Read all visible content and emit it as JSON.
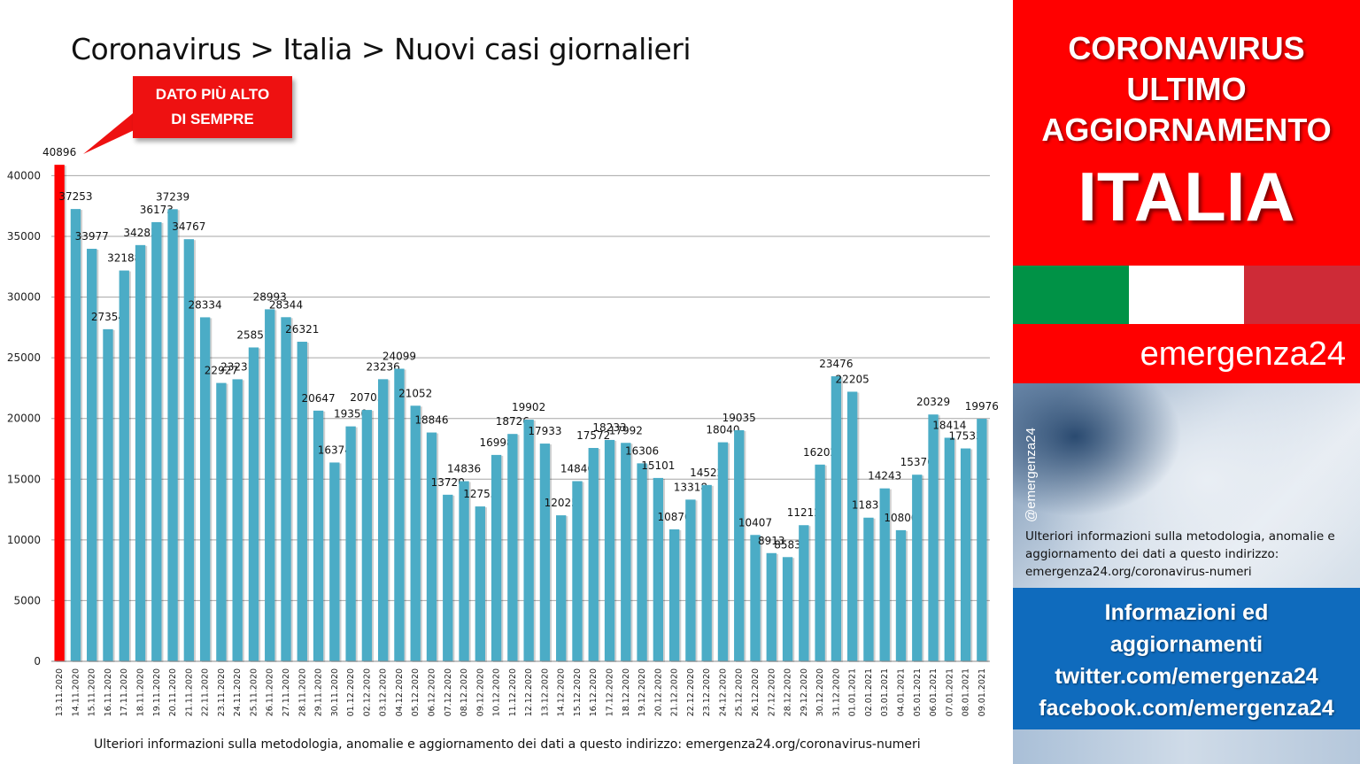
{
  "chart_data": {
    "type": "bar",
    "title": "Coronavirus > Italia > Nuovi casi giornalieri",
    "xlabel": "",
    "ylabel": "",
    "ylim": [
      0,
      42000
    ],
    "yticks": [
      0,
      5000,
      10000,
      15000,
      20000,
      25000,
      30000,
      35000,
      40000
    ],
    "grid": true,
    "categories": [
      "13.11.2020",
      "14.11.2020",
      "15.11.2020",
      "16.11.2020",
      "17.11.2020",
      "18.11.2020",
      "19.11.2020",
      "20.11.2020",
      "21.11.2020",
      "22.11.2020",
      "23.11.2020",
      "24.11.2020",
      "25.11.2020",
      "26.11.2020",
      "27.11.2020",
      "28.11.2020",
      "29.11.2020",
      "30.11.2020",
      "01.12.2020",
      "02.12.2020",
      "03.12.2020",
      "04.12.2020",
      "05.12.2020",
      "06.12.2020",
      "07.12.2020",
      "08.12.2020",
      "09.12.2020",
      "10.12.2020",
      "11.12.2020",
      "12.12.2020",
      "13.12.2020",
      "14.12.2020",
      "15.12.2020",
      "16.12.2020",
      "17.12.2020",
      "18.12.2020",
      "19.12.2020",
      "20.12.2020",
      "21.12.2020",
      "22.12.2020",
      "23.12.2020",
      "24.12.2020",
      "25.12.2020",
      "26.12.2020",
      "27.12.2020",
      "28.12.2020",
      "29.12.2020",
      "30.12.2020",
      "31.12.2020",
      "01.01.2021",
      "02.01.2021",
      "03.01.2021",
      "04.01.2021",
      "05.01.2021",
      "06.01.2021",
      "07.01.2021",
      "08.01.2021",
      "09.01.2021"
    ],
    "values": [
      40896,
      37253,
      33977,
      27354,
      32188,
      34283,
      36173,
      37239,
      34767,
      28334,
      22927,
      23231,
      25851,
      28993,
      28344,
      26321,
      20647,
      16374,
      19350,
      20703,
      23236,
      24099,
      21052,
      18846,
      13720,
      14836,
      12755,
      16998,
      18726,
      19902,
      17933,
      12025,
      14840,
      17572,
      18233,
      17992,
      16306,
      15101,
      10870,
      13318,
      14522,
      18040,
      19035,
      10407,
      8913,
      8583,
      11212,
      16202,
      23476,
      22205,
      11831,
      14243,
      10800,
      15370,
      20329,
      18414,
      17533,
      19976
    ],
    "highlight_index": 0,
    "colors": {
      "bar": "#4bacc6",
      "highlight": "#ff0000",
      "grid": "#a6a6a6"
    },
    "annotation": {
      "line1": "DATO PIÙ ALTO",
      "line2": "DI SEMPRE"
    },
    "footnote": "Ulteriori informazioni sulla metodologia, anomalie e aggiornamento dei dati a questo indirizzo: emergenza24.org/coronavirus-numeri"
  },
  "side": {
    "line1": "CORONAVIRUS",
    "line2": "ULTIMO",
    "line3": "AGGIORNAMENTO",
    "country": "ITALIA",
    "flag_colors": [
      "#009246",
      "#ffffff",
      "#ce2b37"
    ],
    "brand": "emergenza24",
    "handle": "@emergenza24",
    "note": "Ulteriori informazioni sulla metodologia, anomalie e aggiornamento dei dati a questo indirizzo: emergenza24.org/coronavirus-numeri",
    "info_title1": "Informazioni ed",
    "info_title2": "aggiornamenti",
    "twitter": "twitter.com/emergenza24",
    "facebook": "facebook.com/emergenza24"
  }
}
